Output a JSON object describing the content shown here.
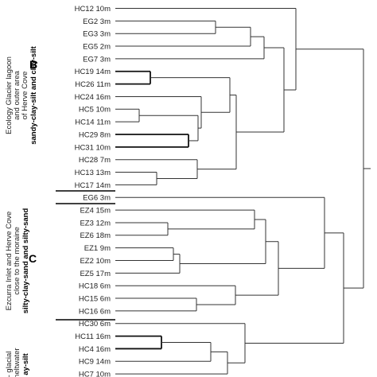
{
  "dendrogram": {
    "leaves": [
      "HC12 10m",
      "EG2 3m",
      "EG3 3m",
      "EG5 2m",
      "EG7 3m",
      "HC19 14m",
      "HC26 11m",
      "HC24 16m",
      "HC5 10m",
      "HC14 11m",
      "HC29 8m",
      "HC31 10m",
      "HC28 7m",
      "HC13 13m",
      "HC17 14m",
      "EG6 3m",
      "EZ4 15m",
      "EZ3 12m",
      "EZ6 18m",
      "EZ1 9m",
      "EZ2 10m",
      "EZ5 17m",
      "HC18 6m",
      "HC15 6m",
      "HC16 6m",
      "HC30 6m",
      "HC11 16m",
      "HC4 16m",
      "HC9 14m",
      "HC7 10m"
    ],
    "groups": [
      {
        "letter": "B",
        "description_lines": [
          "Ecology Glacier lagoon",
          "and outer area",
          "of Herve Cove"
        ],
        "bold_line": "sandy-clay-silt and clay-silt"
      },
      {
        "letter": "C",
        "description_lines": [
          "Ezcurra Inlet and Herve Cove",
          "close to the moraine"
        ],
        "bold_line": "silty-clay-sand and silty-sand"
      },
      {
        "letter": "",
        "description_lines": [
          "- glacial",
          "meltwater"
        ],
        "bold_line": "ay-silt"
      }
    ],
    "colors": {
      "line": "#333333",
      "text": "#222222"
    }
  }
}
